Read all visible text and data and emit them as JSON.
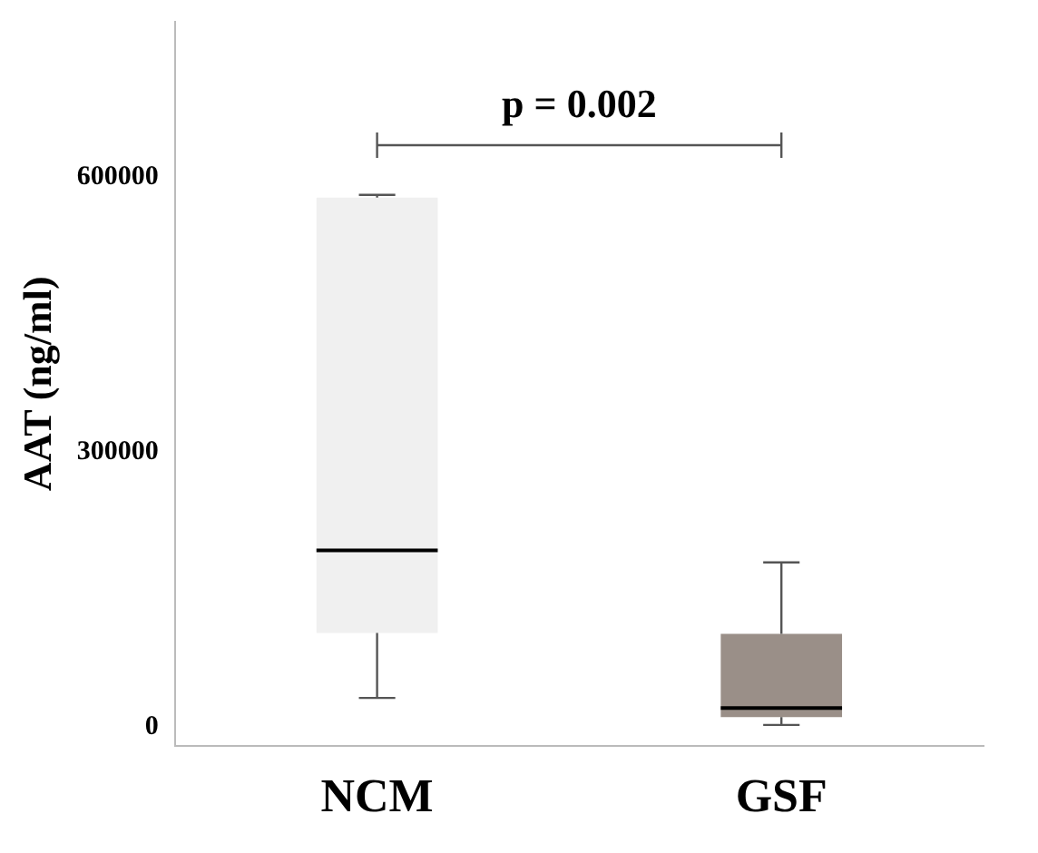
{
  "chart_data": {
    "type": "box",
    "ylabel": "AAT (ng/ml)",
    "categories": [
      "NCM",
      "GSF"
    ],
    "boxes": [
      {
        "low": 32000,
        "q1": 103000,
        "median": 193000,
        "q3": 578000,
        "high": 581000
      },
      {
        "low": 2500,
        "q1": 11000,
        "median": 21000,
        "q3": 102000,
        "high": 180000
      }
    ],
    "colors": [
      "#f0f0f0",
      "#9a8f88"
    ],
    "ylim": [
      -20000,
      770000
    ],
    "yticks": [
      0,
      300000,
      600000
    ],
    "grid": false,
    "annotations": [
      "p = 0.002"
    ]
  }
}
